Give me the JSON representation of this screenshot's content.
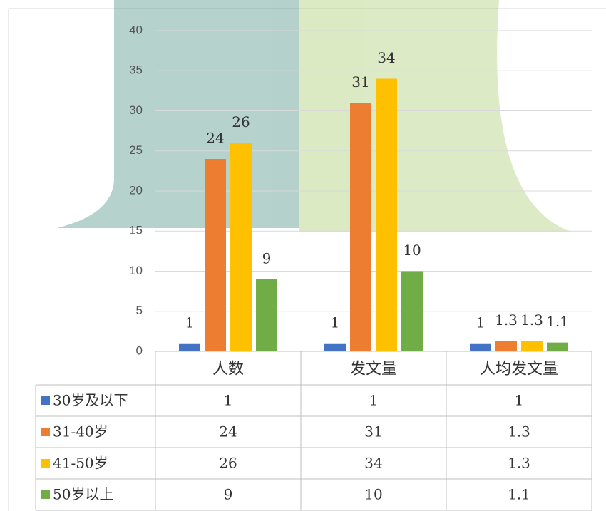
{
  "chart_data": {
    "type": "bar",
    "categories": [
      "人数",
      "发文量",
      "人均发文量"
    ],
    "series": [
      {
        "name": "30岁及以下",
        "color": "#4472c4",
        "values": [
          1,
          1,
          1
        ]
      },
      {
        "name": "31-40岁",
        "color": "#ed7d31",
        "values": [
          24,
          31,
          1.3
        ]
      },
      {
        "name": "41-50岁",
        "color": "#ffc000",
        "values": [
          26,
          34,
          1.3
        ]
      },
      {
        "name": "50岁以上",
        "color": "#70ad47",
        "values": [
          9,
          10,
          1.1
        ]
      }
    ],
    "ylim": [
      0,
      40
    ],
    "yticks": [
      0,
      5,
      10,
      15,
      20,
      25,
      30,
      35,
      40
    ],
    "grid": true
  }
}
